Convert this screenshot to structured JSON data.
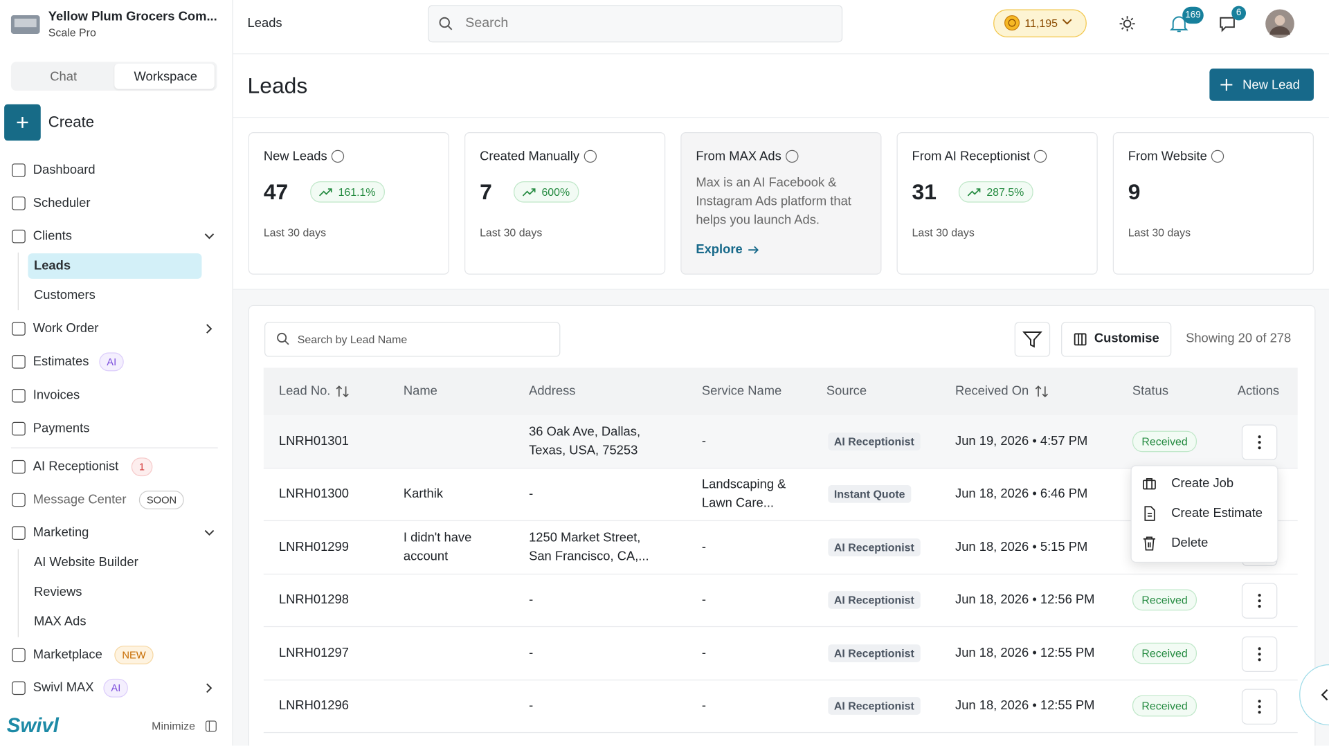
{
  "sidebar": {
    "company": "Yellow Plum Grocers Com...",
    "plan": "Scale Pro",
    "tabs": [
      "Chat",
      "Workspace"
    ],
    "create": "Create",
    "nav": [
      {
        "label": "Dashboard"
      },
      {
        "label": "Scheduler"
      },
      {
        "label": "Clients"
      },
      {
        "label": "Work Order"
      },
      {
        "label": "Estimates",
        "badge": "AI"
      },
      {
        "label": "Invoices"
      },
      {
        "label": "Payments"
      },
      {
        "label": "AI Receptionist",
        "badge": "1"
      },
      {
        "label": "Message Center",
        "badge": "SOON"
      },
      {
        "label": "Marketing"
      },
      {
        "label": "Marketplace",
        "badge": "NEW"
      },
      {
        "label": "Swivl MAX",
        "badge": "AI"
      }
    ],
    "clients_sub": [
      "Leads",
      "Customers"
    ],
    "marketing_sub": [
      "AI Website Builder",
      "Reviews",
      "MAX Ads"
    ],
    "logo": "Swivl",
    "minimize": "Minimize"
  },
  "header": {
    "title": "Leads",
    "search": "Search",
    "credits": "11,195",
    "notifications": 169,
    "messages": 6
  },
  "page": {
    "title": "Leads",
    "new_button": "New Lead"
  },
  "cards": [
    {
      "title": "New Leads",
      "value": 47,
      "change": "161.1%",
      "period": "Last 30 days"
    },
    {
      "title": "Created Manually",
      "value": 7,
      "change": "600%",
      "period": "Last 30 days"
    },
    {
      "title": "From MAX Ads",
      "description": "Max is an AI Facebook & Instagram Ads platform that helps you launch Ads.",
      "link": "Explore"
    },
    {
      "title": "From AI Receptionist",
      "value": 31,
      "change": "287.5%",
      "period": "Last 30 days"
    },
    {
      "title": "From Website",
      "value": 9,
      "period": "Last 30 days"
    }
  ],
  "table": {
    "search": "Search by Lead Name",
    "customise": "Customise",
    "showing": "Showing 20 of 278",
    "columns": [
      "Lead No.",
      "Name",
      "Address",
      "Service Name",
      "Source",
      "Received On",
      "Status",
      "Actions"
    ],
    "rows": [
      {
        "lead_no": "LNRH01301",
        "name": null,
        "address": "36 Oak Ave, Dallas, Texas, USA, 75253",
        "service": "-",
        "source": "AI Receptionist",
        "received": "Jun 19, 2026 • 4:57 PM",
        "status": "Received"
      },
      {
        "lead_no": "LNRH01300",
        "name": "Karthik",
        "address": "-",
        "service": "Landscaping & Lawn Care...",
        "source": "Instant Quote",
        "received": "Jun 18, 2026 • 6:46 PM",
        "status": null
      },
      {
        "lead_no": "LNRH01299",
        "name": "I didn't have account",
        "address": "1250 Market Street, San Francisco, CA,...",
        "service": "-",
        "source": "AI Receptionist",
        "received": "Jun 18, 2026 • 5:15 PM",
        "status": null
      },
      {
        "lead_no": "LNRH01298",
        "name": null,
        "address": "-",
        "service": "-",
        "source": "AI Receptionist",
        "received": "Jun 18, 2026 • 12:56 PM",
        "status": "Received"
      },
      {
        "lead_no": "LNRH01297",
        "name": null,
        "address": "-",
        "service": "-",
        "source": "AI Receptionist",
        "received": "Jun 18, 2026 • 12:55 PM",
        "status": "Received"
      },
      {
        "lead_no": "LNRH01296",
        "name": null,
        "address": "-",
        "service": "-",
        "source": "AI Receptionist",
        "received": "Jun 18, 2026 • 12:55 PM",
        "status": "Received"
      }
    ],
    "menu": [
      "Create Job",
      "Create Estimate",
      "Delete"
    ]
  }
}
